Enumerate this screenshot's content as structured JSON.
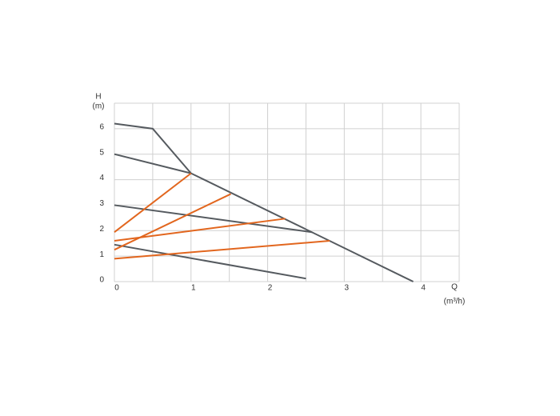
{
  "chart_data": {
    "type": "line",
    "y_label": "H",
    "y_unit": "(m)",
    "x_label": "Q",
    "x_unit": "(m³/h)",
    "xlim": [
      0,
      4.5
    ],
    "ylim": [
      0,
      7
    ],
    "xticks": [
      0,
      1,
      2,
      3,
      4
    ],
    "yticks": [
      0,
      1,
      2,
      3,
      4,
      5,
      6
    ],
    "xgrid": [
      0,
      0.5,
      1,
      1.5,
      2,
      2.5,
      3,
      3.5,
      4,
      4.5
    ],
    "ygrid": [
      0,
      1,
      2,
      3,
      4,
      5,
      6,
      7
    ],
    "grid": true,
    "series": [
      {
        "color": "#555a5f",
        "x": [
          0,
          0.5,
          1,
          3.9
        ],
        "values": [
          6.2,
          6.0,
          4.25,
          0
        ]
      },
      {
        "color": "#555a5f",
        "x": [
          0,
          1
        ],
        "values": [
          5.0,
          4.25
        ]
      },
      {
        "color": "#555a5f",
        "x": [
          0,
          2.58
        ],
        "values": [
          3.0,
          1.94
        ]
      },
      {
        "color": "#555a5f",
        "x": [
          0,
          2.5
        ],
        "values": [
          1.45,
          0.12
        ]
      },
      {
        "color": "#e2661e",
        "x": [
          0,
          1
        ],
        "values": [
          1.94,
          4.25
        ]
      },
      {
        "color": "#e2661e",
        "x": [
          0,
          1.52
        ],
        "values": [
          1.25,
          3.44
        ]
      },
      {
        "color": "#e2661e",
        "x": [
          0,
          2.23
        ],
        "values": [
          1.6,
          2.47
        ]
      },
      {
        "color": "#e2661e",
        "x": [
          0,
          2.81
        ],
        "values": [
          0.9,
          1.6
        ]
      }
    ]
  }
}
